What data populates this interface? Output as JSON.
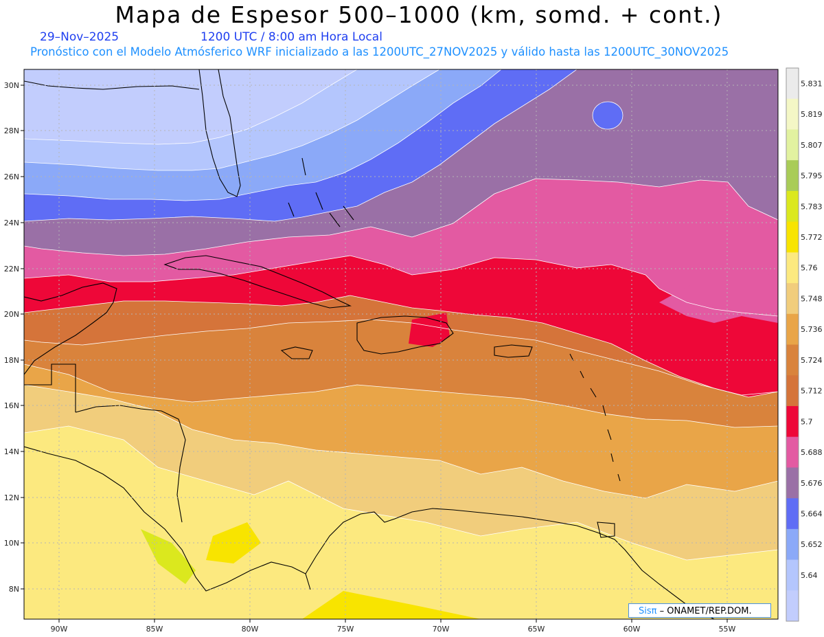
{
  "title": "Mapa de Espesor 500–1000 (km, somd. + cont.)",
  "date": "29–Nov–2025",
  "time": "1200 UTC / 8:00 am Hora Local",
  "info": "Pronóstico con el Modelo Atmósferico WRF inicializado a las 1200UTC_27NOV2025 y válido hasta las  1200UTC_30NOV2025",
  "credit": {
    "logo": "Sisπ",
    "text": "– ONAMET/REP.DOM."
  },
  "lat_ticks": [
    "30N",
    "28N",
    "26N",
    "24N",
    "22N",
    "20N",
    "18N",
    "16N",
    "14N",
    "12N",
    "10N",
    "8N"
  ],
  "lon_ticks": [
    "90W",
    "85W",
    "80W",
    "75W",
    "70W",
    "65W",
    "60W",
    "55W"
  ],
  "colorbar": {
    "levels": [
      "5.831",
      "5.819",
      "5.807",
      "5.795",
      "5.783",
      "5.772",
      "5.76",
      "5.748",
      "5.736",
      "5.724",
      "5.712",
      "5.7",
      "5.688",
      "5.676",
      "5.664",
      "5.652",
      "5.64"
    ],
    "colors": [
      "#ebebeb",
      "#f4f7c6",
      "#e2f2a0",
      "#a9cc58",
      "#dbe81e",
      "#f8e400",
      "#fce97f",
      "#f1cd7c",
      "#e9a548",
      "#d9833c",
      "#d5743a",
      "#ee0738",
      "#e35aa2",
      "#9a70a6",
      "#5f6df5",
      "#8ba9f8",
      "#b4c6fd",
      "#c2cdfd"
    ]
  }
}
